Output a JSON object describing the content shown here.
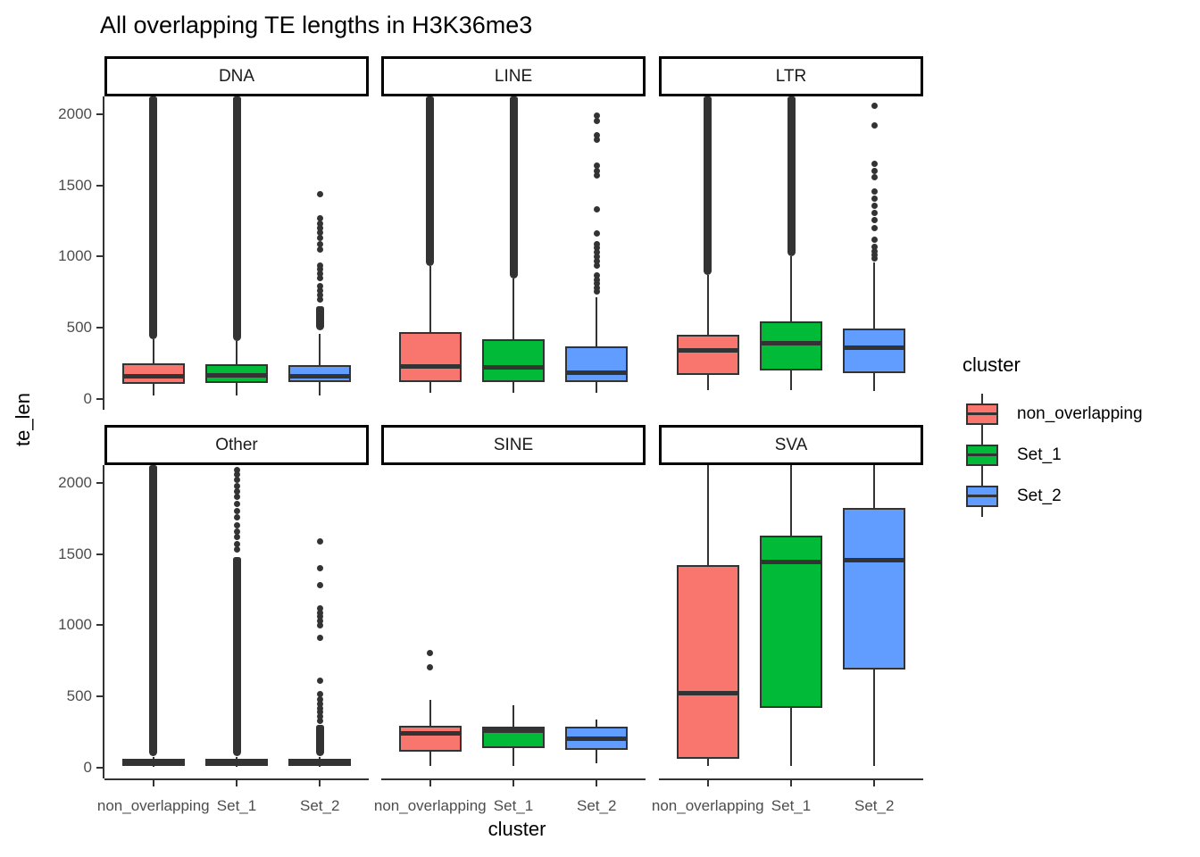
{
  "chart_data": {
    "type": "boxplot",
    "title": "All overlapping TE lengths in H3K36me3",
    "xlabel": "cluster",
    "ylabel": "te_len",
    "grid": "off",
    "y_ticks": [
      0,
      500,
      1000,
      1500,
      2000
    ],
    "y_axis_range": [
      -75,
      2125
    ],
    "x_categories": [
      "non_overlapping",
      "Set_1",
      "Set_2"
    ],
    "legend": {
      "title": "cluster",
      "position": "right",
      "entries": [
        {
          "label": "non_overlapping",
          "color": "#F8766D"
        },
        {
          "label": "Set_1",
          "color": "#00BA38"
        },
        {
          "label": "Set_2",
          "color": "#619CFF"
        }
      ]
    },
    "style": {
      "box_outline": "#333333",
      "axis_text_color": "#4D4D4D",
      "axis_line_color": "#333333",
      "strip_fill": "#FFFFFF",
      "strip_border": "#000000"
    },
    "facets": [
      {
        "label": "DNA",
        "boxes": [
          {
            "cluster": "non_overlapping",
            "whisker_low": 25,
            "q1": 105,
            "median": 163,
            "q3": 250,
            "whisker_high": 420,
            "outlier_column": [
              420,
              2125
            ],
            "outliers": []
          },
          {
            "cluster": "Set_1",
            "whisker_low": 25,
            "q1": 113,
            "median": 168,
            "q3": 245,
            "whisker_high": 408,
            "outlier_column": [
              408,
              2125
            ],
            "outliers": []
          },
          {
            "cluster": "Set_2",
            "whisker_low": 25,
            "q1": 119,
            "median": 157,
            "q3": 238,
            "whisker_high": 460,
            "outlier_column": [
              480,
              650
            ],
            "outliers": [
              700,
              730,
              760,
              790,
              850,
              880,
              910,
              940,
              1050,
              1090,
              1130,
              1170,
              1200,
              1230,
              1270,
              1440
            ]
          }
        ]
      },
      {
        "label": "LINE",
        "boxes": [
          {
            "cluster": "non_overlapping",
            "whisker_low": 45,
            "q1": 120,
            "median": 230,
            "q3": 470,
            "whisker_high": 935,
            "outlier_column": [
              935,
              2125
            ],
            "outliers": []
          },
          {
            "cluster": "Set_1",
            "whisker_low": 45,
            "q1": 120,
            "median": 220,
            "q3": 420,
            "whisker_high": 845,
            "outlier_column": [
              845,
              2125
            ],
            "outliers": []
          },
          {
            "cluster": "Set_2",
            "whisker_low": 45,
            "q1": 119,
            "median": 182,
            "q3": 370,
            "whisker_high": 715,
            "outliers": [
              755,
              780,
              810,
              840,
              870,
              940,
              970,
              1000,
              1030,
              1060,
              1090,
              1160,
              1330,
              1570,
              1600,
              1640,
              1820,
              1850,
              1950,
              1990
            ]
          }
        ]
      },
      {
        "label": "LTR",
        "boxes": [
          {
            "cluster": "non_overlapping",
            "whisker_low": 60,
            "q1": 170,
            "median": 340,
            "q3": 450,
            "whisker_high": 870,
            "outlier_column": [
              870,
              2125
            ],
            "outliers": []
          },
          {
            "cluster": "Set_1",
            "whisker_low": 60,
            "q1": 200,
            "median": 390,
            "q3": 545,
            "whisker_high": 1000,
            "outlier_column": [
              1000,
              2125
            ],
            "outliers": []
          },
          {
            "cluster": "Set_2",
            "whisker_low": 55,
            "q1": 180,
            "median": 360,
            "q3": 495,
            "whisker_high": 960,
            "outliers": [
              985,
              1010,
              1040,
              1070,
              1120,
              1200,
              1260,
              1310,
              1360,
              1410,
              1460,
              1560,
              1600,
              1650,
              1920,
              2060
            ]
          }
        ]
      },
      {
        "label": "Other",
        "boxes": [
          {
            "cluster": "non_overlapping",
            "whisker_low": 5,
            "q1": 15,
            "median": 35,
            "q3": 60,
            "whisker_high": 78,
            "outlier_column": [
              80,
              2125
            ],
            "outliers": []
          },
          {
            "cluster": "Set_1",
            "whisker_low": 5,
            "q1": 15,
            "median": 35,
            "q3": 60,
            "whisker_high": 78,
            "outlier_column": [
              80,
              1480
            ],
            "outliers": [
              1530,
              1570,
              1620,
              1660,
              1700,
              1760,
              1800,
              1850,
              1900,
              1940,
              1980,
              2020,
              2060,
              2090
            ]
          },
          {
            "cluster": "Set_2",
            "whisker_low": 5,
            "q1": 15,
            "median": 35,
            "q3": 60,
            "whisker_high": 78,
            "outlier_column": [
              80,
              300
            ],
            "outliers": [
              330,
              360,
              390,
              420,
              450,
              480,
              520,
              610,
              910,
              1000,
              1030,
              1060,
              1090,
              1120,
              1280,
              1400,
              1590
            ]
          }
        ]
      },
      {
        "label": "SINE",
        "boxes": [
          {
            "cluster": "non_overlapping",
            "whisker_low": 15,
            "q1": 115,
            "median": 240,
            "q3": 295,
            "whisker_high": 475,
            "outliers": [
              705,
              805
            ]
          },
          {
            "cluster": "Set_1",
            "whisker_low": 15,
            "q1": 135,
            "median": 258,
            "q3": 290,
            "whisker_high": 440,
            "outliers": []
          },
          {
            "cluster": "Set_2",
            "whisker_low": 30,
            "q1": 125,
            "median": 205,
            "q3": 290,
            "whisker_high": 340,
            "outliers": []
          }
        ]
      },
      {
        "label": "SVA",
        "boxes": [
          {
            "cluster": "non_overlapping",
            "whisker_low": 15,
            "q1": 65,
            "median": 525,
            "q3": 1420,
            "whisker_high": 2125,
            "outliers": []
          },
          {
            "cluster": "Set_1",
            "whisker_low": 15,
            "q1": 420,
            "median": 1445,
            "q3": 1630,
            "whisker_high": 2125,
            "outliers": []
          },
          {
            "cluster": "Set_2",
            "whisker_low": 15,
            "q1": 690,
            "median": 1455,
            "q3": 1825,
            "whisker_high": 2125,
            "outliers": []
          }
        ]
      }
    ]
  }
}
